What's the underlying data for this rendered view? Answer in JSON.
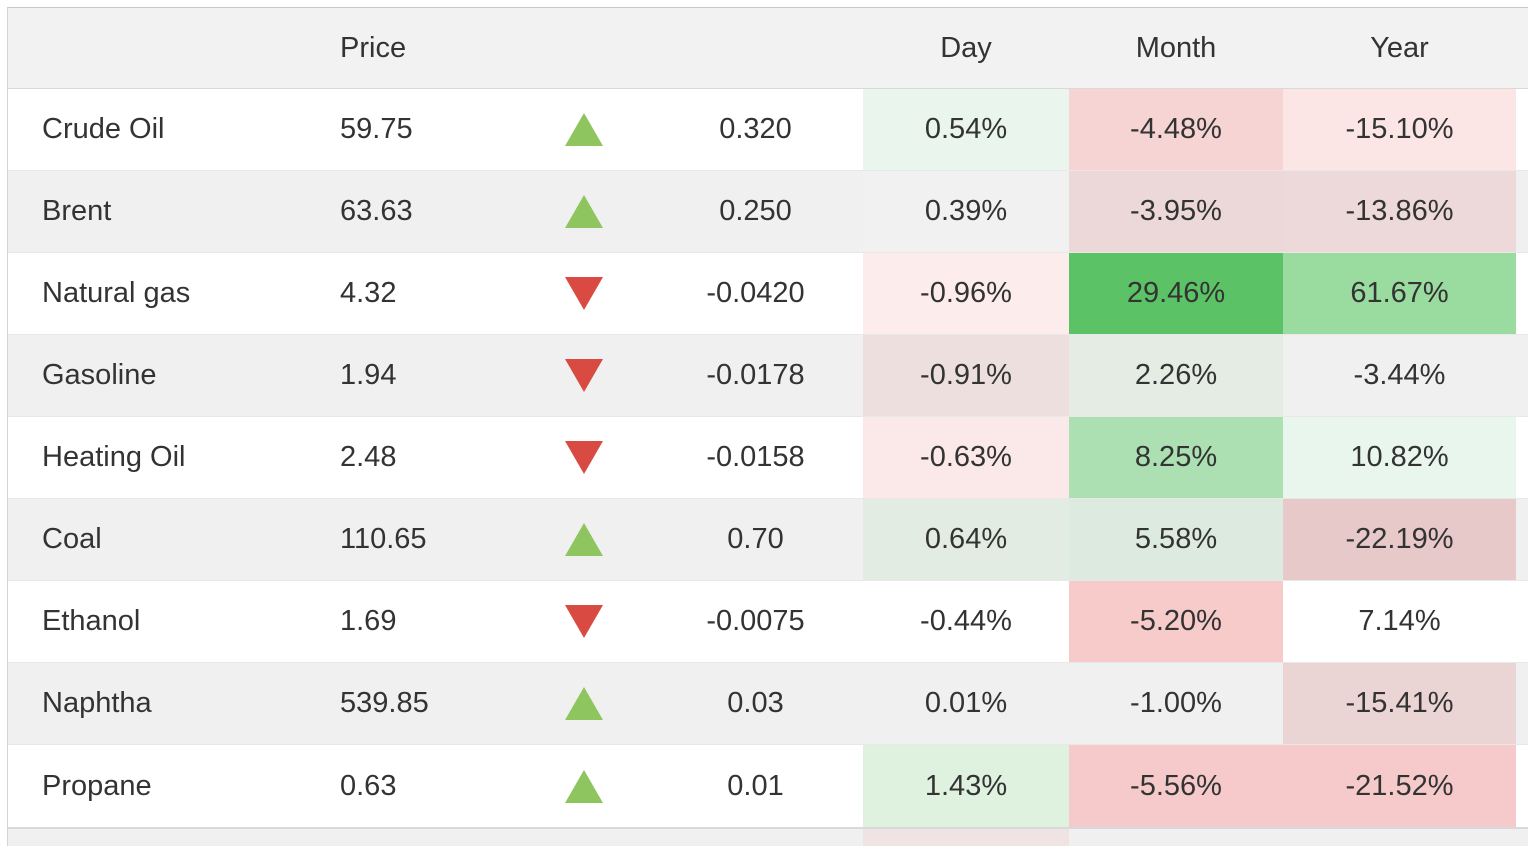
{
  "colors": {
    "up_arrow": "#8fc55f",
    "down_arrow": "#d94a42",
    "stripe": "#f0f0f0",
    "header_bg": "#f2f2f2",
    "strong_green": "#5bc366",
    "strong_pink": "#f6caca"
  },
  "header": {
    "commodity": "",
    "price": "Price",
    "day": "Day",
    "month": "Month",
    "year": "Year"
  },
  "rows": [
    {
      "name": "Crude Oil",
      "price": "59.75",
      "direction": "up",
      "change": "0.320",
      "day": "0.54%",
      "month": "-4.48%",
      "year": "-15.10%",
      "cell_colors": {
        "day": "#e9f5ed",
        "month": "#f5d4d3",
        "year": "#fbe5e5"
      }
    },
    {
      "name": "Brent",
      "price": "63.63",
      "direction": "up",
      "change": "0.250",
      "day": "0.39%",
      "month": "-3.95%",
      "year": "-13.86%",
      "cell_colors": {
        "day": "#f0f1f0",
        "month": "#ecd8d8",
        "year": "#edd9d9"
      }
    },
    {
      "name": "Natural gas",
      "price": "4.32",
      "direction": "down",
      "change": "-0.0420",
      "day": "-0.96%",
      "month": "29.46%",
      "year": "61.67%",
      "cell_colors": {
        "day": "#fcecec",
        "month": "#5bc366",
        "year": "#9adb9f"
      }
    },
    {
      "name": "Gasoline",
      "price": "1.94",
      "direction": "down",
      "change": "-0.0178",
      "day": "-0.91%",
      "month": "2.26%",
      "year": "-3.44%",
      "cell_colors": {
        "day": "#eedfdf",
        "month": "#e4ece4",
        "year": "#f0f0f0"
      }
    },
    {
      "name": "Heating Oil",
      "price": "2.48",
      "direction": "down",
      "change": "-0.0158",
      "day": "-0.63%",
      "month": "8.25%",
      "year": "10.82%",
      "cell_colors": {
        "day": "#fbe9e9",
        "month": "#ace0b2",
        "year": "#e9f6ee"
      }
    },
    {
      "name": "Coal",
      "price": "110.65",
      "direction": "up",
      "change": "0.70",
      "day": "0.64%",
      "month": "5.58%",
      "year": "-22.19%",
      "cell_colors": {
        "day": "#e3ece3",
        "month": "#ddeadf",
        "year": "#e6c9c8"
      }
    },
    {
      "name": "Ethanol",
      "price": "1.69",
      "direction": "down",
      "change": "-0.0075",
      "day": "-0.44%",
      "month": "-5.20%",
      "year": "7.14%",
      "cell_colors": {
        "day": "#ffffff",
        "month": "#f6cbca",
        "year": "#ffffff"
      }
    },
    {
      "name": "Naphtha",
      "price": "539.85",
      "direction": "up",
      "change": "0.03",
      "day": "0.01%",
      "month": "-1.00%",
      "year": "-15.41%",
      "cell_colors": {
        "day": "#f0f0f0",
        "month": "#f0f0f0",
        "year": "#ebd4d4"
      }
    },
    {
      "name": "Propane",
      "price": "0.63",
      "direction": "up",
      "change": "0.01",
      "day": "1.43%",
      "month": "-5.56%",
      "year": "-21.52%",
      "cell_colors": {
        "day": "#def2df",
        "month": "#f6caca",
        "year": "#f6caca"
      }
    },
    {
      "name": "",
      "price": "",
      "direction": "none",
      "change": "",
      "day": "",
      "month": "",
      "year": "",
      "partial": true,
      "cell_colors": {
        "day": "#f0e3e3",
        "month": "",
        "year": ""
      }
    }
  ]
}
